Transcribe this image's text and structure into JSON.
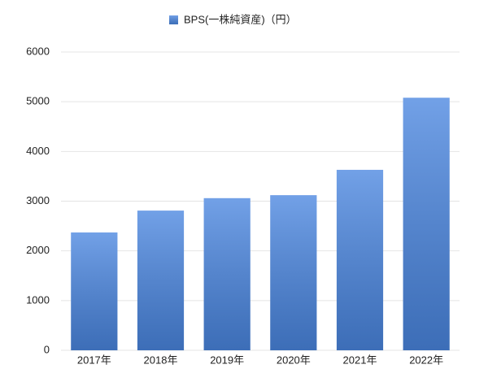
{
  "chart_data": {
    "type": "bar",
    "categories": [
      "2017年",
      "2018年",
      "2019年",
      "2020年",
      "2021年",
      "2022年"
    ],
    "series": [
      {
        "name": "BPS(一株純資産)（円）",
        "color": "#4a86e0",
        "values": [
          2370,
          2810,
          3060,
          3120,
          3630,
          5080
        ]
      }
    ],
    "ylim": [
      0,
      6000
    ],
    "yticks": [
      0,
      1000,
      2000,
      3000,
      4000,
      5000,
      6000
    ],
    "grid": true,
    "legend": "top"
  }
}
